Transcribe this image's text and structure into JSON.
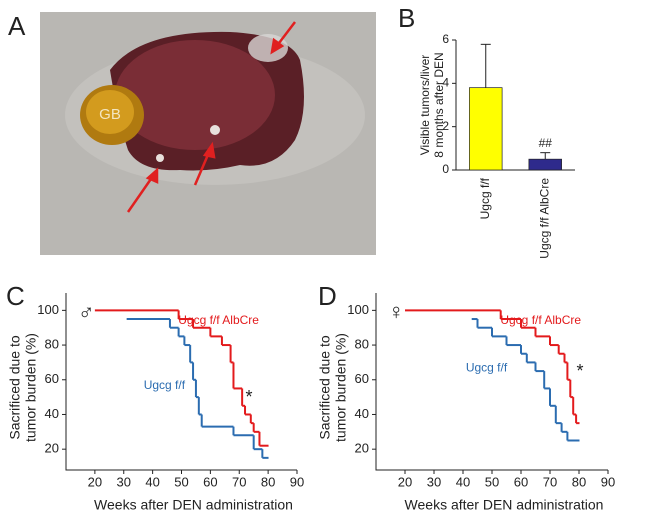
{
  "panel_labels": [
    "A",
    "B",
    "C",
    "D"
  ],
  "photo": {
    "label": "GB"
  },
  "chart_data": [
    {
      "type": "bar",
      "categories": [
        "Ugcg f/f",
        "Ugcg f/f AlbCre"
      ],
      "values": [
        3.8,
        0.5
      ],
      "errors": [
        2.0,
        0.3
      ],
      "colors": [
        "#ffff00",
        "#2e2a8c"
      ],
      "y_label": [
        "Visible tumors/liver",
        "8 months after DEN"
      ],
      "ylim": [
        0,
        6
      ],
      "yticks": [
        0,
        2,
        4,
        6
      ],
      "annotation": "##"
    },
    {
      "type": "step",
      "symbol": "♂",
      "x_label": "Weeks after DEN administration",
      "y_label": [
        "Sacrificed due to",
        "tumor burden (%)"
      ],
      "xlim": [
        10,
        90
      ],
      "xticks": [
        20,
        30,
        40,
        50,
        60,
        70,
        80,
        90
      ],
      "ylim": [
        8,
        110
      ],
      "yticks": [
        20,
        40,
        60,
        80,
        100
      ],
      "annotation": "*",
      "series": [
        {
          "name": "Ugcg f/f AlbCre",
          "color": "#e31a1c",
          "x": [
            20,
            49,
            54,
            60,
            64,
            67,
            68,
            71,
            72,
            74,
            75,
            77,
            80
          ],
          "values": [
            100,
            95,
            90,
            85,
            80,
            70,
            55,
            45,
            40,
            35,
            30,
            22,
            22
          ]
        },
        {
          "name": "Ugcg f/f",
          "color": "#2b6cb0",
          "x": [
            31,
            46,
            49,
            51,
            53,
            54,
            55,
            56,
            57,
            68,
            75,
            78,
            80
          ],
          "values": [
            95,
            90,
            85,
            80,
            70,
            60,
            50,
            40,
            33,
            28,
            20,
            15,
            15
          ]
        }
      ]
    },
    {
      "type": "step",
      "symbol": "♀",
      "x_label": "Weeks after DEN administration",
      "y_label": [
        "Sacrificed due to",
        "tumor burden (%)"
      ],
      "xlim": [
        10,
        90
      ],
      "xticks": [
        20,
        30,
        40,
        50,
        60,
        70,
        80,
        90
      ],
      "ylim": [
        8,
        110
      ],
      "yticks": [
        20,
        40,
        60,
        80,
        100
      ],
      "annotation": "*",
      "series": [
        {
          "name": "Ugcg f/f AlbCre",
          "color": "#e31a1c",
          "x": [
            20,
            53,
            60,
            65,
            70,
            73,
            75,
            76,
            77,
            78,
            79,
            80
          ],
          "values": [
            100,
            95,
            90,
            85,
            80,
            75,
            70,
            60,
            50,
            40,
            35,
            35
          ]
        },
        {
          "name": "Ugcg f/f",
          "color": "#2b6cb0",
          "x": [
            43,
            45,
            50,
            55,
            60,
            62,
            65,
            68,
            70,
            72,
            74,
            76,
            80
          ],
          "values": [
            95,
            90,
            85,
            80,
            75,
            70,
            65,
            55,
            45,
            35,
            30,
            25,
            25
          ]
        }
      ]
    }
  ]
}
